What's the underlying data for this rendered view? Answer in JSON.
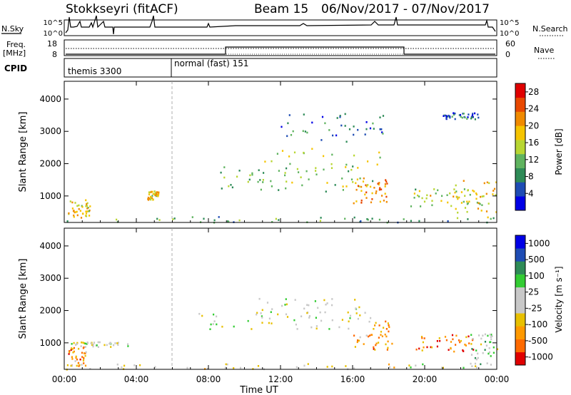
{
  "header": {
    "station": "Stokkseyri (fitACF)",
    "beam": "Beam 15",
    "date_range": "06/Nov/2017 - 07/Nov/2017"
  },
  "noise_panel": {
    "left_label": "N.Sky",
    "right_label": "N.Search",
    "y_ticks_left": [
      "10^5",
      "10^0"
    ],
    "y_ticks_right": [
      "10^5",
      "10^0"
    ]
  },
  "freq_panel": {
    "left_label_line1": "Freq.",
    "left_label_line2": "[MHz]",
    "right_label": "Nave",
    "y_ticks_left": [
      "18",
      "8"
    ],
    "y_ticks_right": [
      "60",
      "0"
    ]
  },
  "cpid_panel": {
    "label": "CPID",
    "modes": [
      {
        "name": "themis 3300",
        "start_hour": 0
      },
      {
        "name": "normal (fast) 151",
        "start_hour": 6
      }
    ]
  },
  "colors": {
    "power_scale": [
      "#0000e6",
      "#1e4cb4",
      "#2e8b57",
      "#5fb35f",
      "#b8d632",
      "#f5c400",
      "#f08a00",
      "#e84800",
      "#e00000"
    ],
    "velocity_scale": [
      "#e00000",
      "#ff6a00",
      "#ff9900",
      "#e8c000",
      "#c8c8c8",
      "#c8c8c8",
      "#33cc33",
      "#2e8b57",
      "#1e4cb4",
      "#0000e6"
    ],
    "ground_scatter": "#b4b4b4"
  },
  "chart_data": [
    {
      "type": "heatmap",
      "panel": "power",
      "title": "",
      "xlabel": "",
      "ylabel": "Slant Range [km]",
      "x_ticks": [
        "00:00",
        "04:00",
        "08:00",
        "12:00",
        "16:00",
        "20:00",
        "00:00"
      ],
      "xlim_hours": [
        0,
        24
      ],
      "y_ticks": [
        1000,
        2000,
        3000,
        4000
      ],
      "ylim_km": [
        180,
        4550
      ],
      "colorbar_label": "Power [dB]",
      "colorbar_ticks": [
        4,
        8,
        12,
        16,
        20,
        24,
        28
      ],
      "colorbar_range": [
        0,
        30
      ],
      "scatter_regions": [
        {
          "t_start": 0.2,
          "t_end": 1.4,
          "r_min": 300,
          "r_max": 900,
          "level": 0.6
        },
        {
          "t_start": 0.0,
          "t_end": 24.0,
          "r_min": 200,
          "r_max": 380,
          "level": 0.3
        },
        {
          "t_start": 4.6,
          "t_end": 5.2,
          "r_min": 900,
          "r_max": 1200,
          "level": 0.6
        },
        {
          "t_start": 8.6,
          "t_end": 16.2,
          "r_min": 1150,
          "r_max": 1950,
          "level": 0.4
        },
        {
          "t_start": 10.2,
          "t_end": 17.5,
          "r_min": 1300,
          "r_max": 2500,
          "level": 0.5
        },
        {
          "t_start": 16.0,
          "t_end": 18.0,
          "r_min": 800,
          "r_max": 1600,
          "level": 0.7
        },
        {
          "t_start": 19.2,
          "t_end": 23.5,
          "r_min": 700,
          "r_max": 1300,
          "level": 0.5
        },
        {
          "t_start": 21.5,
          "t_end": 24.0,
          "r_min": 300,
          "r_max": 1500,
          "level": 0.6
        },
        {
          "t_start": 12.0,
          "t_end": 18.0,
          "r_min": 2700,
          "r_max": 3600,
          "level": 0.25
        },
        {
          "t_start": 21.0,
          "t_end": 23.0,
          "r_min": 3400,
          "r_max": 3600,
          "level": 0.2
        }
      ]
    },
    {
      "type": "heatmap",
      "panel": "velocity",
      "title": "",
      "xlabel": "Time UT",
      "ylabel": "Slant Range [km]",
      "x_ticks": [
        "00:00",
        "04:00",
        "08:00",
        "12:00",
        "16:00",
        "20:00",
        "00:00"
      ],
      "xlim_hours": [
        0,
        24
      ],
      "y_ticks": [
        1000,
        2000,
        3000,
        4000
      ],
      "ylim_km": [
        180,
        4550
      ],
      "colorbar_label": "Velocity [m s⁻¹]",
      "colorbar_ticks": [
        1000,
        500,
        100,
        25,
        -25,
        -100,
        -500,
        -1000
      ],
      "colorbar_range": [
        -1000,
        1000
      ],
      "scatter_regions": [
        {
          "t_start": 0.2,
          "t_end": 1.2,
          "r_min": 300,
          "r_max": 900,
          "level": 0.25
        },
        {
          "t_start": 0.3,
          "t_end": 3.5,
          "r_min": 900,
          "r_max": 1050,
          "level": 0.5
        },
        {
          "t_start": 0.0,
          "t_end": 24.0,
          "r_min": 200,
          "r_max": 380,
          "level": 0.45
        },
        {
          "t_start": 7.0,
          "t_end": 17.0,
          "r_min": 1450,
          "r_max": 2000,
          "level": 0.5
        },
        {
          "t_start": 10.5,
          "t_end": 16.5,
          "r_min": 1700,
          "r_max": 2400,
          "level": 0.5
        },
        {
          "t_start": 16.0,
          "t_end": 18.2,
          "r_min": 800,
          "r_max": 1700,
          "level": 0.25
        },
        {
          "t_start": 19.5,
          "t_end": 23.0,
          "r_min": 750,
          "r_max": 1300,
          "level": 0.2
        },
        {
          "t_start": 22.5,
          "t_end": 24.0,
          "r_min": 300,
          "r_max": 1300,
          "level": 0.55
        }
      ]
    }
  ],
  "time_axis_label": "Time UT"
}
